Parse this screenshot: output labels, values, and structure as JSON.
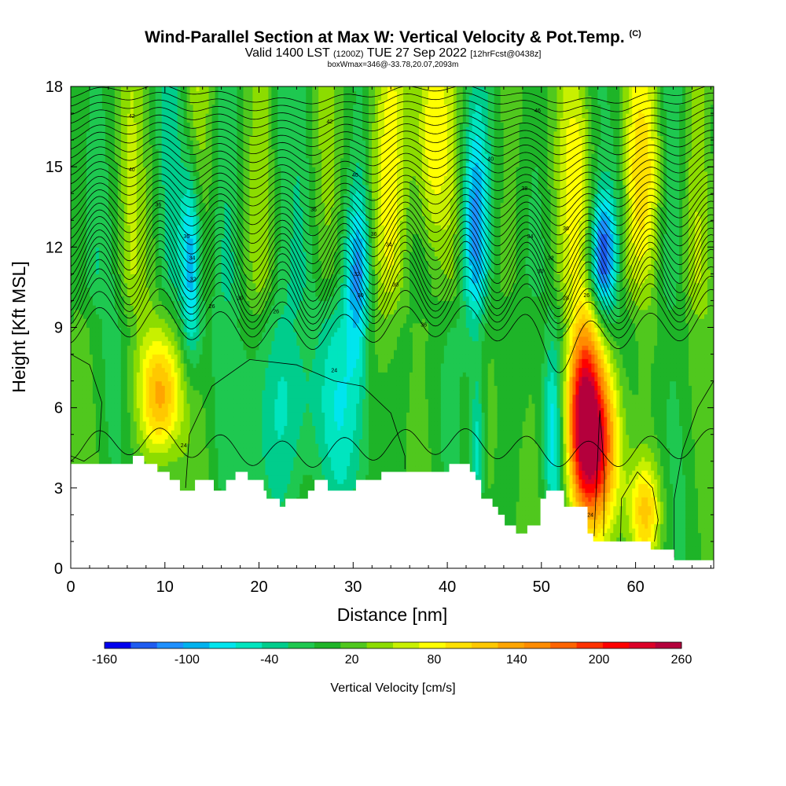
{
  "header": {
    "title": "Wind-Parallel Section at Max W: Vertical Velocity & Pot.Temp.",
    "copyright": "(C)",
    "valid_prefix": "Valid 1400 LST",
    "valid_utc": "(1200Z)",
    "valid_date": "TUE 27 Sep 2022",
    "forecast": "[12hrFcst@0438z]",
    "box_info": "boxWmax=346@-33.78,20.07,2093m"
  },
  "chart_data": {
    "type": "heatmap",
    "xlabel": "Distance [nm]",
    "ylabel": "Height [Kft MSL]",
    "xlim": [
      0,
      68.3
    ],
    "ylim": [
      0,
      18
    ],
    "x_ticks": [
      0,
      10,
      20,
      30,
      40,
      50,
      60
    ],
    "y_ticks": [
      0,
      3,
      6,
      9,
      12,
      15,
      18
    ],
    "colorbar": {
      "title": "Vertical Velocity [cm/s]",
      "levels": [
        -160,
        -140,
        -120,
        -100,
        -80,
        -60,
        -40,
        -20,
        0,
        20,
        40,
        60,
        80,
        100,
        120,
        140,
        160,
        180,
        200,
        220,
        240,
        260
      ],
      "tick_labels": [
        "-160",
        "-100",
        "-40",
        "20",
        "80",
        "140",
        "200",
        "260"
      ],
      "colors": [
        "#0000ee",
        "#1e5cf0",
        "#1e90ff",
        "#00b2ee",
        "#00e5ee",
        "#00e5bf",
        "#00cd8c",
        "#1ec850",
        "#1eb428",
        "#50c81e",
        "#8cdc00",
        "#c8f000",
        "#ffff00",
        "#ffe100",
        "#ffc800",
        "#ffa500",
        "#ff8c00",
        "#ff6400",
        "#ff3200",
        "#ff0000",
        "#dc0028",
        "#b4003c"
      ]
    },
    "w_features": [
      {
        "x": 9.6,
        "z": 6.5,
        "amp": 130,
        "sx": 1.6,
        "sz": 1.6
      },
      {
        "x": 12.8,
        "z": 11.5,
        "amp": -130,
        "sx": 0.8,
        "sz": 2.5
      },
      {
        "x": 30.5,
        "z": 11.0,
        "amp": -110,
        "sx": 0.9,
        "sz": 2.5
      },
      {
        "x": 42.9,
        "z": 12.6,
        "amp": -120,
        "sx": 1.0,
        "sz": 3.0
      },
      {
        "x": 56.6,
        "z": 11.7,
        "amp": -150,
        "sx": 0.9,
        "sz": 1.6
      },
      {
        "x": 54.4,
        "z": 5.5,
        "amp": 250,
        "sx": 1.3,
        "sz": 2.6
      },
      {
        "x": 56.5,
        "z": 4.5,
        "amp": 150,
        "sx": 1.4,
        "sz": 2.2
      },
      {
        "x": 51.2,
        "z": 5.0,
        "amp": -80,
        "sx": 0.7,
        "sz": 2.5
      },
      {
        "x": 43.2,
        "z": 4.5,
        "amp": -70,
        "sx": 0.5,
        "sz": 2.0
      },
      {
        "x": 33.8,
        "z": 15.0,
        "amp": 70,
        "sx": 1.5,
        "sz": 4.0
      },
      {
        "x": 38.3,
        "z": 16.0,
        "amp": 80,
        "sx": 1.4,
        "sz": 3.0
      },
      {
        "x": 54.0,
        "z": 15.0,
        "amp": 70,
        "sx": 1.2,
        "sz": 3.0
      },
      {
        "x": 60.8,
        "z": 14.5,
        "amp": 80,
        "sx": 1.2,
        "sz": 3.0
      },
      {
        "x": 61.0,
        "z": 2.2,
        "amp": 100,
        "sx": 1.2,
        "sz": 1.3
      },
      {
        "x": 22.0,
        "z": 6.0,
        "amp": -55,
        "sx": 3.0,
        "sz": 3.0
      },
      {
        "x": 29.0,
        "z": 6.0,
        "amp": -50,
        "sx": 2.5,
        "sz": 3.0
      }
    ],
    "terrain_kft": [
      [
        0,
        3.9
      ],
      [
        6.6,
        3.9
      ],
      [
        6.6,
        4.2
      ],
      [
        7.8,
        4.2
      ],
      [
        7.8,
        3.9
      ],
      [
        9.2,
        3.9
      ],
      [
        9.2,
        3.6
      ],
      [
        10.5,
        3.6
      ],
      [
        10.5,
        3.3
      ],
      [
        11.6,
        3.3
      ],
      [
        11.6,
        2.9
      ],
      [
        13.2,
        2.9
      ],
      [
        13.2,
        3.3
      ],
      [
        15.2,
        3.3
      ],
      [
        15.2,
        2.9
      ],
      [
        16.5,
        2.9
      ],
      [
        16.5,
        3.3
      ],
      [
        17.5,
        3.3
      ],
      [
        17.5,
        3.6
      ],
      [
        18.8,
        3.6
      ],
      [
        18.8,
        3.3
      ],
      [
        20.5,
        3.3
      ],
      [
        20.5,
        2.9
      ],
      [
        20.8,
        2.9
      ],
      [
        20.8,
        2.6
      ],
      [
        22.2,
        2.6
      ],
      [
        22.2,
        2.3
      ],
      [
        22.8,
        2.3
      ],
      [
        22.8,
        2.6
      ],
      [
        25.2,
        2.6
      ],
      [
        25.2,
        2.9
      ],
      [
        25.9,
        2.9
      ],
      [
        25.9,
        3.3
      ],
      [
        27.3,
        3.3
      ],
      [
        27.3,
        2.9
      ],
      [
        30.3,
        2.9
      ],
      [
        30.3,
        3.3
      ],
      [
        33.0,
        3.3
      ],
      [
        33.0,
        3.6
      ],
      [
        40.2,
        3.6
      ],
      [
        40.2,
        3.9
      ],
      [
        42.4,
        3.9
      ],
      [
        42.4,
        3.6
      ],
      [
        43.0,
        3.6
      ],
      [
        43.0,
        3.3
      ],
      [
        43.6,
        3.3
      ],
      [
        43.6,
        2.6
      ],
      [
        44.8,
        2.6
      ],
      [
        44.8,
        2.3
      ],
      [
        45.4,
        2.3
      ],
      [
        45.4,
        2.0
      ],
      [
        46.1,
        2.0
      ],
      [
        46.1,
        1.6
      ],
      [
        47.3,
        1.6
      ],
      [
        47.3,
        1.3
      ],
      [
        48.5,
        1.3
      ],
      [
        48.5,
        1.6
      ],
      [
        49.9,
        1.6
      ],
      [
        49.9,
        2.6
      ],
      [
        50.5,
        2.6
      ],
      [
        50.5,
        2.9
      ],
      [
        52.4,
        2.9
      ],
      [
        52.4,
        2.3
      ],
      [
        54.9,
        2.3
      ],
      [
        54.9,
        1.3
      ],
      [
        55.5,
        1.3
      ],
      [
        55.5,
        1.0
      ],
      [
        61.6,
        1.0
      ],
      [
        61.6,
        0.7
      ],
      [
        64.1,
        0.7
      ],
      [
        64.1,
        0.3
      ],
      [
        68.3,
        0.3
      ]
    ],
    "theta_contour_labels": [
      {
        "text": "24",
        "x": 12.0,
        "z": 4.6
      },
      {
        "text": "24",
        "x": 28.0,
        "z": 7.4
      },
      {
        "text": "24",
        "x": 55.2,
        "z": 2.0
      },
      {
        "text": "26",
        "x": 15.0,
        "z": 9.8
      },
      {
        "text": "30",
        "x": 18.0,
        "z": 10.1
      },
      {
        "text": "26",
        "x": 21.8,
        "z": 9.6
      },
      {
        "text": "36",
        "x": 37.5,
        "z": 9.1
      },
      {
        "text": "30",
        "x": 30.8,
        "z": 10.2
      },
      {
        "text": "32",
        "x": 13.0,
        "z": 10.8
      },
      {
        "text": "34",
        "x": 12.9,
        "z": 11.6
      },
      {
        "text": "36",
        "x": 12.3,
        "z": 12.4
      },
      {
        "text": "36",
        "x": 9.3,
        "z": 13.6
      },
      {
        "text": "40",
        "x": 6.5,
        "z": 14.9
      },
      {
        "text": "42",
        "x": 6.5,
        "z": 16.9
      },
      {
        "text": "42",
        "x": 27.5,
        "z": 16.7
      },
      {
        "text": "40",
        "x": 30.2,
        "z": 14.7
      },
      {
        "text": "36",
        "x": 25.8,
        "z": 13.4
      },
      {
        "text": "36",
        "x": 32.2,
        "z": 12.5
      },
      {
        "text": "34",
        "x": 33.8,
        "z": 12.1
      },
      {
        "text": "32",
        "x": 30.4,
        "z": 11.0
      },
      {
        "text": "30",
        "x": 34.5,
        "z": 10.6
      },
      {
        "text": "46",
        "x": 49.6,
        "z": 17.1
      },
      {
        "text": "40",
        "x": 44.6,
        "z": 15.3
      },
      {
        "text": "38",
        "x": 48.2,
        "z": 14.2
      },
      {
        "text": "34",
        "x": 48.8,
        "z": 12.4
      },
      {
        "text": "36",
        "x": 52.6,
        "z": 12.7
      },
      {
        "text": "32",
        "x": 51.0,
        "z": 11.6
      },
      {
        "text": "30",
        "x": 49.9,
        "z": 11.1
      },
      {
        "text": "28",
        "x": 52.6,
        "z": 10.1
      },
      {
        "text": "26",
        "x": 54.8,
        "z": 10.2
      }
    ]
  }
}
